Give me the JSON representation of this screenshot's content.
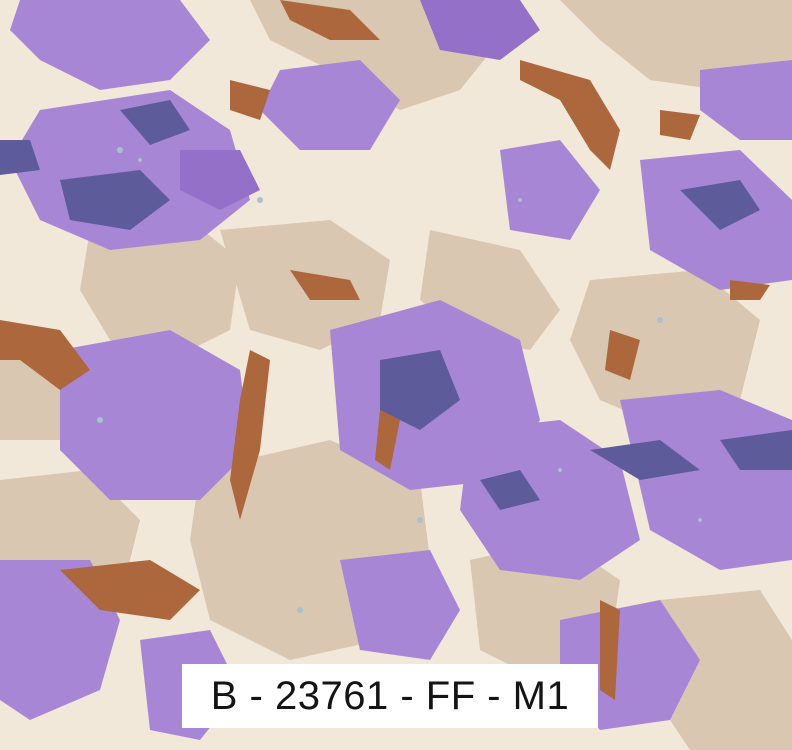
{
  "pattern": {
    "palette": {
      "cream": "#f1e8da",
      "beige": "#d9c7b2",
      "lavender": "#a886d6",
      "purple": "#9470c8",
      "indigo": "#5d5b9a",
      "brown": "#ad673d",
      "pale_blue": "#a9c0cf"
    },
    "style": "abstract marbled floral camouflage print"
  },
  "label": {
    "code": "B - 23761 - FF - M1"
  }
}
